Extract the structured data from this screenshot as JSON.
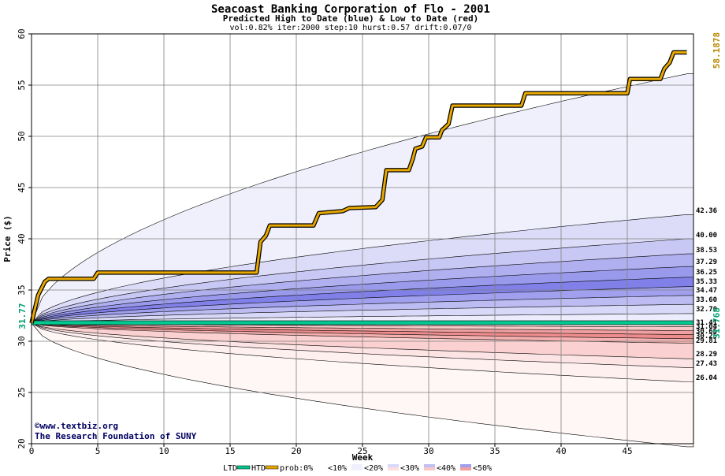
{
  "chart_data": {
    "type": "area",
    "title": "Seacoast Banking Corporation of Flo - 2001",
    "subtitle": "Predicted High to Date (blue) &  Low to Date (red)",
    "params": "vol:0.82% iter:2000 step:10 hurst:0.57 drift:0.07/0",
    "xlabel": "Week",
    "ylabel": "Price ($)",
    "xlim": [
      0,
      50
    ],
    "ylim": [
      20,
      60
    ],
    "x_ticks": [
      0,
      5,
      10,
      15,
      20,
      25,
      30,
      35,
      40,
      45
    ],
    "y_ticks": [
      20,
      25,
      30,
      35,
      40,
      45,
      50,
      55,
      60
    ],
    "grid": true,
    "start_value_label": "31.77",
    "end_value_label": "31.768",
    "htd_end_label": "58.1878",
    "right_labels": [
      "42.36",
      "40.00",
      "38.53",
      "37.29",
      "36.25",
      "35.33",
      "34.47",
      "33.60",
      "32.70",
      "31.41",
      "31.04",
      "30.65",
      "30.25",
      "29.81",
      "28.29",
      "27.43",
      "26.04"
    ],
    "high_bands": [
      {
        "prob": "<10%",
        "end": 56.1,
        "color": "#f0f0fc"
      },
      {
        "prob": "<20%",
        "end": 42.36,
        "color": "#dcdcf8"
      },
      {
        "prob": "<30%",
        "end": 40.0,
        "color": "#c8c8f4"
      },
      {
        "prob": "<40%",
        "end": 38.53,
        "color": "#b0b0f0"
      },
      {
        "prob": "<50%",
        "end": 37.29,
        "color": "#9a9aec"
      },
      {
        "prob": "",
        "end": 36.25,
        "color": "#8080e8"
      },
      {
        "prob": "",
        "end": 35.33,
        "color": "#a0a0ee"
      },
      {
        "prob": "",
        "end": 34.47,
        "color": "#bcbcf2"
      },
      {
        "prob": "",
        "end": 33.6,
        "color": "#d8d8f8"
      },
      {
        "prob": "",
        "end": 32.7,
        "color": "#ececfc"
      }
    ],
    "low_bands": [
      {
        "end": 31.41,
        "color": "#fce0e0"
      },
      {
        "end": 31.04,
        "color": "#f8c8c8"
      },
      {
        "end": 30.65,
        "color": "#f0a0a0"
      },
      {
        "end": 30.25,
        "color": "#ec8c8c"
      },
      {
        "end": 29.81,
        "color": "#f4b0b0"
      },
      {
        "end": 28.29,
        "color": "#fad0d0"
      },
      {
        "end": 27.43,
        "color": "#fde4e4"
      },
      {
        "end": 26.04,
        "color": "#fff0f0"
      },
      {
        "end": 19.7,
        "color": "#fff6f6"
      }
    ],
    "htd_series": {
      "name": "HTD",
      "color": "#e8a800",
      "points": [
        [
          0,
          31.77
        ],
        [
          0.5,
          34.5
        ],
        [
          1,
          35.8
        ],
        [
          1.3,
          36.1
        ],
        [
          4.7,
          36.1
        ],
        [
          5,
          36.7
        ],
        [
          17,
          36.7
        ],
        [
          17.3,
          39.7
        ],
        [
          17.7,
          40.3
        ],
        [
          18,
          41.3
        ],
        [
          21.3,
          41.3
        ],
        [
          21.7,
          42.5
        ],
        [
          23.5,
          42.7
        ],
        [
          24,
          43.0
        ],
        [
          26,
          43.1
        ],
        [
          26.5,
          43.8
        ],
        [
          26.8,
          46.7
        ],
        [
          28.5,
          46.7
        ],
        [
          28.8,
          47.8
        ],
        [
          29,
          48.8
        ],
        [
          29.5,
          49.0
        ],
        [
          29.8,
          49.9
        ],
        [
          30.8,
          49.9
        ],
        [
          31,
          50.6
        ],
        [
          31.5,
          51.2
        ],
        [
          31.8,
          53.0
        ],
        [
          37,
          53.0
        ],
        [
          37.3,
          54.2
        ],
        [
          45,
          54.2
        ],
        [
          45.2,
          55.6
        ],
        [
          47.5,
          55.6
        ],
        [
          47.8,
          56.6
        ],
        [
          48.2,
          57.2
        ],
        [
          48.5,
          58.19
        ],
        [
          49.5,
          58.19
        ]
      ]
    },
    "ltd_series": {
      "name": "LTD",
      "color": "#00c890",
      "value": 31.77
    },
    "colors": {
      "high": "#5050e0",
      "low": "#e04040",
      "htd": "#e8a800",
      "ltd": "#00c890",
      "navy": "#000060"
    }
  },
  "watermark": {
    "line1": "©www.textbiz.org",
    "line2": "The Research Foundation of SUNY"
  },
  "legend": {
    "ltd": "LTD",
    "htd": "HTD",
    "prob": "prob:0%",
    "items": [
      "<10%",
      "<20%",
      "<30%",
      "<40%",
      "<50%"
    ]
  }
}
